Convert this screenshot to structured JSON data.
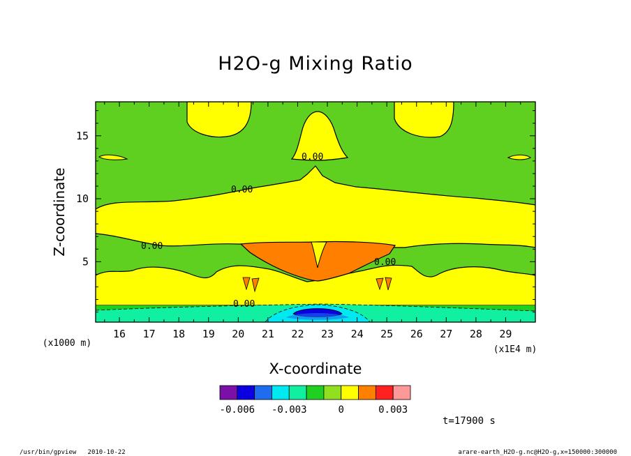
{
  "chart_data": {
    "type": "heatmap",
    "title": "H2O-g Mixing Ratio",
    "xlabel": "X-coordinate",
    "ylabel": "Z-coordinate",
    "x_unit": "(x1E4 m)",
    "y_unit": "(x1000 m)",
    "xlim": [
      15.2,
      30.0
    ],
    "ylim": [
      0.2,
      17.7
    ],
    "x_ticks": [
      "16",
      "17",
      "18",
      "19",
      "20",
      "21",
      "22",
      "23",
      "24",
      "25",
      "26",
      "27",
      "28",
      "29"
    ],
    "y_ticks": [
      "5",
      "10",
      "15"
    ],
    "contour_labels": [
      "0.00",
      "0.00",
      "0.00",
      "0.00",
      "0.00"
    ],
    "colorbar": {
      "colors": [
        "#7a10a8",
        "#0a00e0",
        "#1e6cf0",
        "#00e8f0",
        "#10f0a0",
        "#20d020",
        "#90e020",
        "#ffff00",
        "#ff8000",
        "#ff2020",
        "#ff9898"
      ],
      "tick_labels": [
        "-0.006",
        "-0.003",
        "0",
        "0.003"
      ]
    },
    "time_label": "t=17900 s",
    "footer_left": "/usr/bin/gpview   2010-10-22",
    "footer_right": "arare-earth_H2O-g.nc@H2O-g,x=150000:300000"
  },
  "colors": {
    "green": "#60d020",
    "yellow": "#ffff00",
    "orange": "#ff8000",
    "cyan": "#00e8f0",
    "blue": "#0a00e0",
    "aqua": "#10f0a0",
    "bright_green": "#20d020"
  }
}
